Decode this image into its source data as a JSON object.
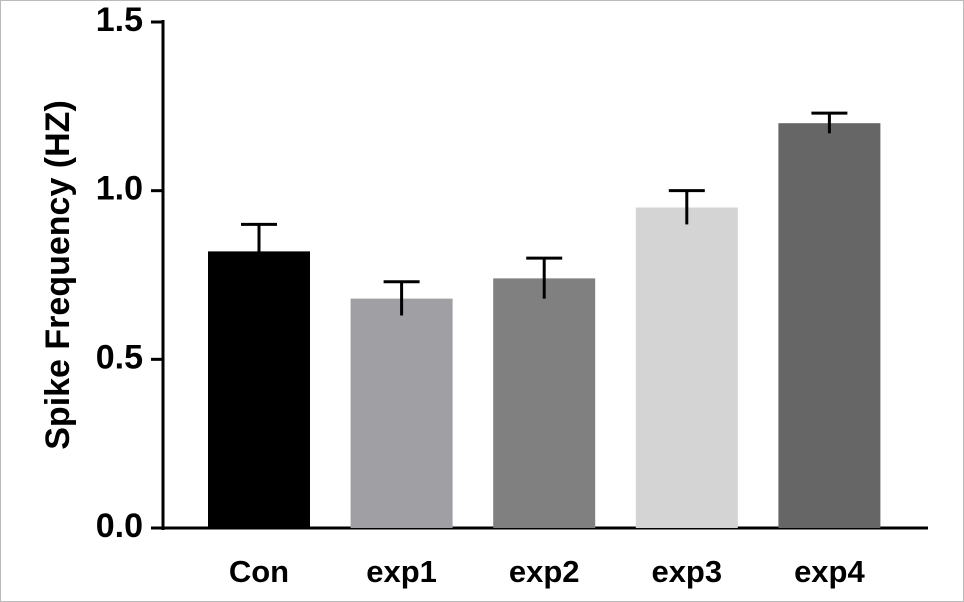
{
  "chart_data": {
    "type": "bar",
    "y_label": "Spike Frequency (HZ)",
    "categories": [
      "Con",
      "exp1",
      "exp2",
      "exp3",
      "exp4"
    ],
    "values": [
      0.82,
      0.68,
      0.74,
      0.95,
      1.2
    ],
    "errors": [
      0.08,
      0.05,
      0.06,
      0.05,
      0.03
    ],
    "colors": [
      "#000000",
      "#a0a0a4",
      "#808080",
      "#d4d4d4",
      "#666666"
    ],
    "ylim": [
      0,
      1.5
    ],
    "yticks": [
      {
        "value": 0,
        "label": "0.0"
      },
      {
        "value": 0.5,
        "label": "0.5"
      },
      {
        "value": 1,
        "label": "1.0"
      },
      {
        "value": 1.5,
        "label": "1.5"
      }
    ]
  }
}
